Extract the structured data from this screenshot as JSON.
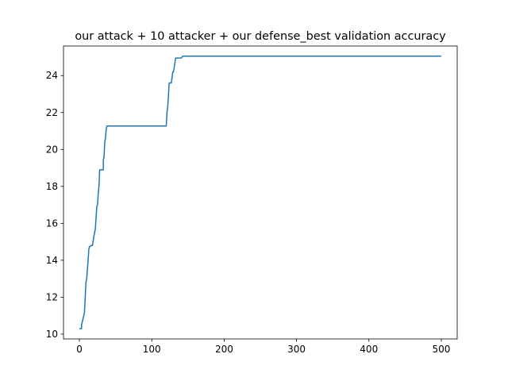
{
  "chart_data": {
    "type": "line",
    "title": "our attack + 10 attacker + our defense_best validation accuracy",
    "xlabel": "",
    "ylabel": "",
    "xlim": [
      -22,
      522
    ],
    "ylim": [
      9.74,
      25.6
    ],
    "xticks": [
      0,
      100,
      200,
      300,
      400,
      500
    ],
    "yticks": [
      10,
      12,
      14,
      16,
      18,
      20,
      22,
      24
    ],
    "grid": false,
    "legend": "none",
    "series": [
      {
        "color": "#1f77b4",
        "x": [
          0,
          3,
          3,
          6,
          7,
          8,
          9,
          10,
          12,
          13,
          14,
          15,
          16,
          18,
          20,
          22,
          24,
          25,
          26,
          27,
          28,
          30,
          33,
          33,
          34,
          35,
          36,
          37,
          38,
          40,
          60,
          80,
          100,
          120,
          121,
          122,
          123,
          124,
          125,
          127,
          129,
          130,
          133,
          134,
          135,
          136,
          137,
          140,
          141,
          143,
          144,
          146,
          200,
          300,
          400,
          500
        ],
        "values": [
          10.3,
          10.3,
          10.5,
          11.0,
          11.2,
          12.0,
          12.8,
          13.0,
          14.0,
          14.6,
          14.75,
          14.75,
          14.8,
          14.8,
          15.3,
          15.7,
          16.9,
          17.0,
          17.6,
          18.0,
          18.9,
          18.9,
          18.9,
          19.4,
          19.6,
          20.4,
          20.6,
          21.1,
          21.27,
          21.27,
          21.27,
          21.27,
          21.27,
          21.27,
          22.0,
          22.3,
          22.9,
          23.6,
          23.6,
          23.6,
          24.2,
          24.2,
          24.95,
          24.95,
          24.95,
          24.95,
          24.95,
          24.95,
          24.97,
          25.05,
          25.05,
          25.05,
          25.05,
          25.05,
          25.05,
          25.05
        ]
      }
    ]
  }
}
